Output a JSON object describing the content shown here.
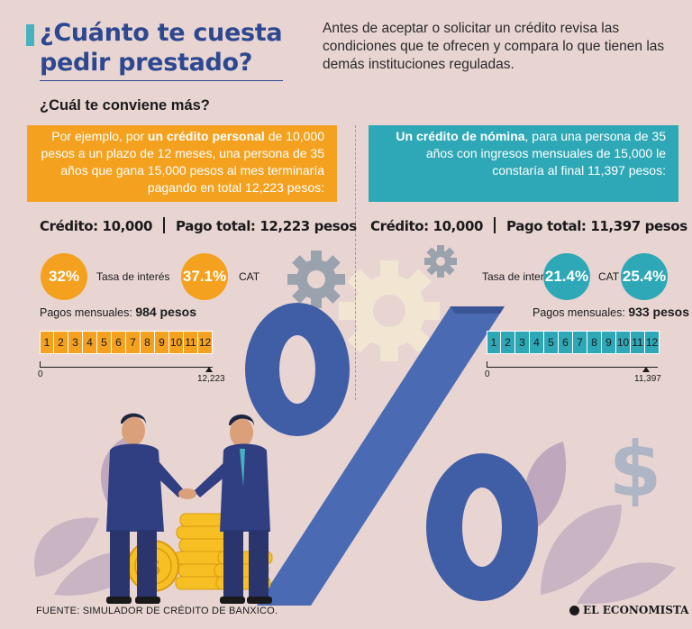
{
  "header": {
    "title": "¿Cuánto te cuesta pedir prestado?",
    "intro": "Antes de aceptar o solicitar un crédito revisa las condiciones que te ofrecen y compara lo que tienen las demás instituciones reguladas.",
    "subtitle": "¿Cuál te conviene más?"
  },
  "personal": {
    "intro_pre": "Por ejemplo, por ",
    "intro_bold": "un crédito personal",
    "intro_post": " de 10,000 pesos a un plazo de 12 meses, una persona de 35 años que gana 15,000 pesos al mes terminaría pagando en total 12,223 pesos:",
    "credit": "Crédito: 10,000",
    "total": "Pago total: 12,223 pesos",
    "rate_value": "32%",
    "rate_label": "Tasa de interés",
    "cat_value": "37.1%",
    "cat_label": "CAT",
    "monthly_label": "Pagos mensuales: ",
    "monthly_value": "984 pesos",
    "months": [
      "1",
      "2",
      "3",
      "4",
      "5",
      "6",
      "7",
      "8",
      "9",
      "10",
      "11",
      "12"
    ],
    "axis_start": "0",
    "axis_end": "12,223",
    "color": "#f4a11f"
  },
  "nomina": {
    "intro_bold": "Un crédito de nómina",
    "intro_post": ", para una persona de 35 años con ingresos mensuales de 15,000 le constaría al final 11,397 pesos:",
    "credit": "Crédito: 10,000",
    "total": "Pago total: 11,397 pesos",
    "rate_value": "21.4%",
    "rate_label": "Tasa de interés",
    "cat_value": "25.4%",
    "cat_label": "CAT",
    "monthly_label": "Pagos mensuales: ",
    "monthly_value": "933 pesos",
    "months": [
      "1",
      "2",
      "3",
      "4",
      "5",
      "6",
      "7",
      "8",
      "9",
      "10",
      "11",
      "12"
    ],
    "axis_start": "0",
    "axis_end": "11,397",
    "color": "#2ea8b6"
  },
  "footer": {
    "source": "FUENTE: SIMULADOR DE CRÉDITO DE BANXICO.",
    "brand": "EL ECONOMISTA"
  },
  "illustration": {
    "percent_sign": "%",
    "dollar_sign": "$"
  },
  "colors": {
    "background": "#e8d5d2",
    "title": "#2e4890",
    "percent": "#4a6bb3",
    "gear_gray": "#9aa2ae",
    "gear_cream": "#f2e6d3",
    "coin": "#f6c024"
  }
}
